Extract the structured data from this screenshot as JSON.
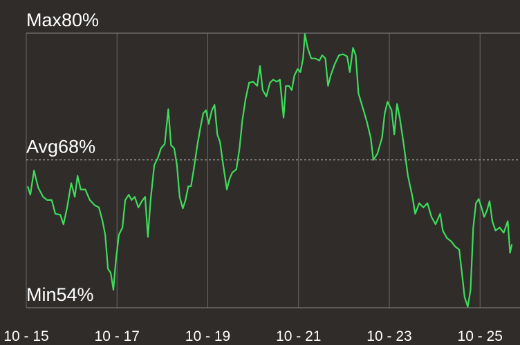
{
  "chart_data": {
    "type": "line",
    "x": [
      15.03,
      15.09,
      15.17,
      15.26,
      15.37,
      15.46,
      15.56,
      15.64,
      15.75,
      15.82,
      15.9,
      15.99,
      16.07,
      16.13,
      16.2,
      16.3,
      16.4,
      16.51,
      16.6,
      16.68,
      16.74,
      16.8,
      16.86,
      16.92,
      16.97,
      17.04,
      17.12,
      17.18,
      17.26,
      17.32,
      17.39,
      17.47,
      17.55,
      17.62,
      17.68,
      17.74,
      17.82,
      17.9,
      17.97,
      18.05,
      18.13,
      18.19,
      18.26,
      18.32,
      18.38,
      18.45,
      18.51,
      18.57,
      18.63,
      18.69,
      18.77,
      18.84,
      18.9,
      18.96,
      19.02,
      19.09,
      19.15,
      19.21,
      19.27,
      19.34,
      19.42,
      19.48,
      19.54,
      19.63,
      19.7,
      19.76,
      19.83,
      19.91,
      20.0,
      20.09,
      20.15,
      20.21,
      20.29,
      20.37,
      20.44,
      20.52,
      20.59,
      20.67,
      20.72,
      20.79,
      20.85,
      20.91,
      20.98,
      21.04,
      21.1,
      21.14,
      21.2,
      21.28,
      21.37,
      21.46,
      21.52,
      21.59,
      21.65,
      21.71,
      21.8,
      21.89,
      21.98,
      22.07,
      22.13,
      22.2,
      22.26,
      22.32,
      22.41,
      22.5,
      22.59,
      22.65,
      22.74,
      22.84,
      22.9,
      22.96,
      23.05,
      23.11,
      23.17,
      23.23,
      23.32,
      23.41,
      23.51,
      23.57,
      23.66,
      23.75,
      23.84,
      23.93,
      24.02,
      24.12,
      24.18,
      24.27,
      24.36,
      24.45,
      24.54,
      24.6,
      24.66,
      24.73,
      24.79,
      24.85,
      24.91,
      24.97,
      25.03,
      25.09,
      25.15,
      25.21,
      25.27,
      25.34,
      25.43,
      25.52,
      25.61,
      25.66,
      25.7
    ],
    "series": [
      {
        "color": "#3fdc5c",
        "values": [
          65.5,
          64.7,
          67.0,
          65.4,
          64.5,
          64.2,
          64.2,
          62.9,
          62.8,
          61.9,
          63.5,
          65.8,
          64.5,
          66.5,
          65.2,
          65.2,
          64.2,
          63.7,
          63.5,
          62.2,
          60.9,
          57.7,
          57.3,
          55.7,
          58.3,
          60.9,
          61.6,
          64.2,
          64.7,
          64.2,
          64.5,
          63.5,
          64.1,
          64.5,
          60.7,
          64.2,
          67.5,
          68.2,
          69.1,
          69.5,
          72.8,
          69.4,
          69.1,
          67.5,
          64.5,
          63.4,
          64.2,
          65.5,
          65.5,
          67.1,
          69.4,
          71.1,
          72.4,
          72.7,
          71.4,
          72.7,
          73.2,
          70.4,
          69.7,
          67.5,
          65.2,
          66.2,
          66.8,
          67.1,
          69.1,
          71.7,
          73.7,
          75.3,
          75.4,
          75.0,
          76.9,
          74.6,
          74.0,
          75.3,
          75.6,
          75.4,
          75.6,
          72.0,
          75.0,
          75.0,
          74.6,
          76.0,
          76.6,
          76.3,
          77.6,
          79.9,
          78.6,
          77.6,
          77.6,
          77.4,
          77.9,
          77.6,
          75.0,
          76.0,
          77.1,
          77.9,
          78.0,
          77.8,
          76.3,
          78.6,
          77.9,
          74.3,
          73.0,
          71.7,
          70.1,
          68.0,
          68.6,
          70.1,
          72.4,
          73.5,
          72.7,
          70.4,
          73.3,
          72.0,
          69.4,
          66.5,
          64.5,
          62.9,
          63.9,
          63.5,
          63.9,
          62.6,
          61.9,
          62.9,
          61.3,
          60.6,
          60.3,
          59.8,
          59.5,
          57.3,
          55.0,
          54.1,
          55.7,
          61.6,
          63.9,
          64.3,
          63.5,
          62.6,
          63.2,
          64.1,
          62.2,
          61.3,
          61.6,
          61.1,
          62.2,
          59.2,
          60.0
        ]
      }
    ],
    "xlim": [
      15,
      25.88
    ],
    "xticks": [
      {
        "value": 15,
        "label": "10 - 15"
      },
      {
        "value": 17,
        "label": "10 - 17"
      },
      {
        "value": 19,
        "label": "10 - 19"
      },
      {
        "value": 21,
        "label": "10 - 21"
      },
      {
        "value": 23,
        "label": "10 - 23"
      },
      {
        "value": 25,
        "label": "10 - 25"
      }
    ],
    "ylim": [
      54,
      80
    ],
    "yticks": [
      {
        "value": 80,
        "label": "Max80%"
      },
      {
        "value": 68,
        "label": "Avg68%"
      },
      {
        "value": 54,
        "label": "Min54%"
      }
    ],
    "grid": true
  }
}
